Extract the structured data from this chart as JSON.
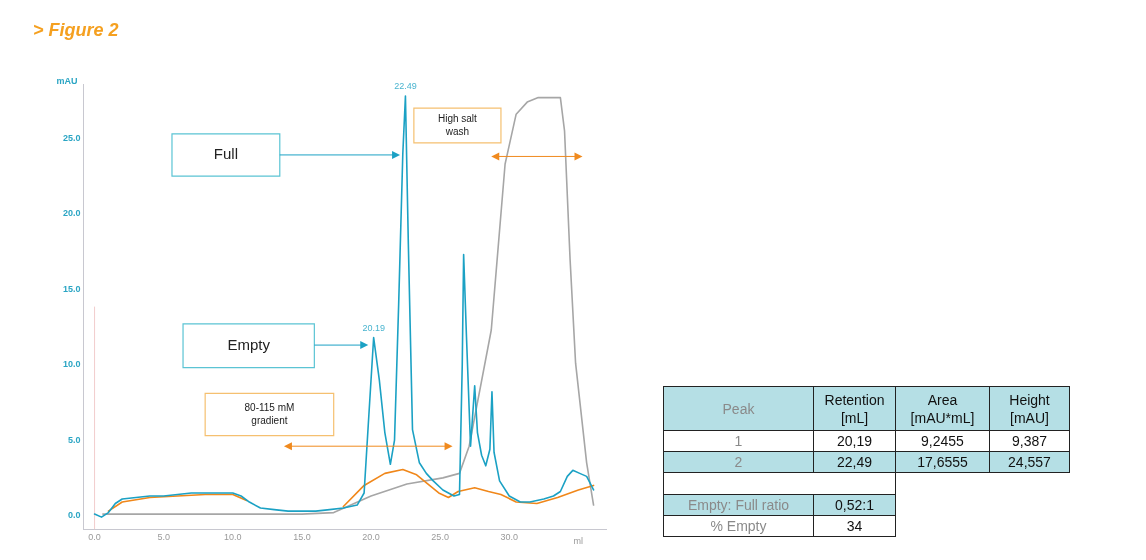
{
  "chart_data": [
    {
      "type": "line",
      "title": "> Figure 2",
      "xlabel": "ml",
      "ylabel": "mAU",
      "xlim": [
        -0.8,
        37
      ],
      "ylim": [
        -0.9,
        28.6
      ],
      "xticks": [
        {
          "value": 0,
          "label": "0.0"
        },
        {
          "value": 5,
          "label": "5.0"
        },
        {
          "value": 10,
          "label": "10.0"
        },
        {
          "value": 15,
          "label": "15.0"
        },
        {
          "value": 20,
          "label": "20.0"
        },
        {
          "value": 25,
          "label": "25.0"
        },
        {
          "value": 30,
          "label": "30.0"
        }
      ],
      "yticks": [
        {
          "value": 0,
          "label": "0.0"
        },
        {
          "value": 5,
          "label": "5.0"
        },
        {
          "value": 10,
          "label": "10.0"
        },
        {
          "value": 15,
          "label": "15.0"
        },
        {
          "value": 20,
          "label": "20.0"
        },
        {
          "value": 25,
          "label": "25.0"
        }
      ],
      "grid": false,
      "legend": false,
      "marker": "none",
      "line_style": "solid",
      "series": [
        {
          "color": "#1ba1c4",
          "x": [
            0,
            0.5,
            1,
            1.5,
            2,
            3,
            4,
            5,
            6,
            7,
            8,
            9,
            10,
            10.6,
            11.2,
            12,
            13,
            14,
            15,
            16,
            17,
            18,
            19,
            19.5,
            19.8,
            20.19,
            20.6,
            21,
            21.4,
            21.7,
            22,
            22.3,
            22.49,
            22.7,
            23,
            23.5,
            24,
            24.5,
            25.2,
            26,
            26.4,
            26.6,
            26.7,
            26.9,
            27.2,
            27.5,
            27.7,
            28,
            28.3,
            28.6,
            28.75,
            28.9,
            29.3,
            30,
            30.8,
            31.5,
            32.5,
            33.2,
            33.7,
            34.2,
            34.6,
            35.1,
            35.6,
            36.1
          ],
          "values": [
            0.1,
            -0.1,
            0.2,
            0.8,
            1.1,
            1.2,
            1.3,
            1.3,
            1.4,
            1.5,
            1.5,
            1.5,
            1.5,
            1.3,
            0.9,
            0.5,
            0.4,
            0.3,
            0.3,
            0.3,
            0.4,
            0.5,
            0.7,
            1.5,
            6,
            11.8,
            9,
            5.5,
            3.4,
            5,
            14,
            24,
            27.8,
            18,
            5.7,
            3.5,
            2.8,
            2.3,
            1.7,
            1.3,
            1.4,
            10,
            17.3,
            12,
            4.6,
            8.6,
            5.5,
            4,
            3.3,
            4.4,
            8.2,
            4.2,
            2.3,
            1.3,
            0.9,
            0.9,
            1.1,
            1.3,
            1.6,
            2.6,
            3,
            2.8,
            2.6,
            1.7
          ]
        },
        {
          "color": "#f0871a",
          "x": [
            1,
            2,
            4,
            6,
            8,
            10,
            11,
            12,
            14,
            16,
            18,
            19.5,
            21,
            22.3,
            23.3,
            24.1,
            24.9,
            25.6,
            26.3,
            27.5,
            28.5,
            29.4,
            30.5,
            32,
            33.5,
            35,
            36.1
          ],
          "values": [
            0.3,
            0.9,
            1.2,
            1.3,
            1.4,
            1.4,
            1,
            null,
            null,
            null,
            0.6,
            2,
            2.8,
            3.05,
            2.7,
            2.1,
            1.5,
            1.2,
            1.6,
            1.85,
            1.6,
            1.4,
            0.9,
            0.8,
            1.2,
            1.7,
            2
          ]
        },
        {
          "color": "#a6a6a6",
          "x": [
            0.6,
            15,
            17.3,
            18.9,
            20,
            22.6,
            25.2,
            26.4,
            27.1,
            28.7,
            29.7,
            30.5,
            31.3,
            32.1,
            33.7,
            34,
            34.4,
            34.8,
            35.6,
            36.1
          ],
          "values": [
            0.1,
            0.1,
            0.2,
            0.85,
            1.3,
            2.1,
            2.5,
            2.8,
            4.6,
            12.3,
            23.3,
            26.6,
            27.4,
            27.7,
            27.7,
            25.5,
            17,
            10.1,
            3.5,
            0.7
          ]
        }
      ],
      "ref_lines": [
        {
          "axis": "x",
          "value": 0,
          "color": "#f2cccc"
        }
      ],
      "annotations": [
        {
          "text": "22.49",
          "x": 22.49,
          "y": 27.8
        },
        {
          "text": "20.19",
          "x": 20.19,
          "y": 11.8
        },
        "Full",
        "Empty",
        "80-115 mM gradient",
        "High salt wash"
      ]
    },
    {
      "type": "other",
      "annotations": [
        "Peak",
        "Retention [mL]",
        "Area [mAU*mL]",
        "Height [mAU]",
        "1",
        "20,19",
        "9,2455",
        "9,387",
        "2",
        "22,49",
        "17,6555",
        "24,557",
        "Empty: Full ratio",
        "0,52:1",
        "% Empty",
        "34"
      ]
    }
  ]
}
